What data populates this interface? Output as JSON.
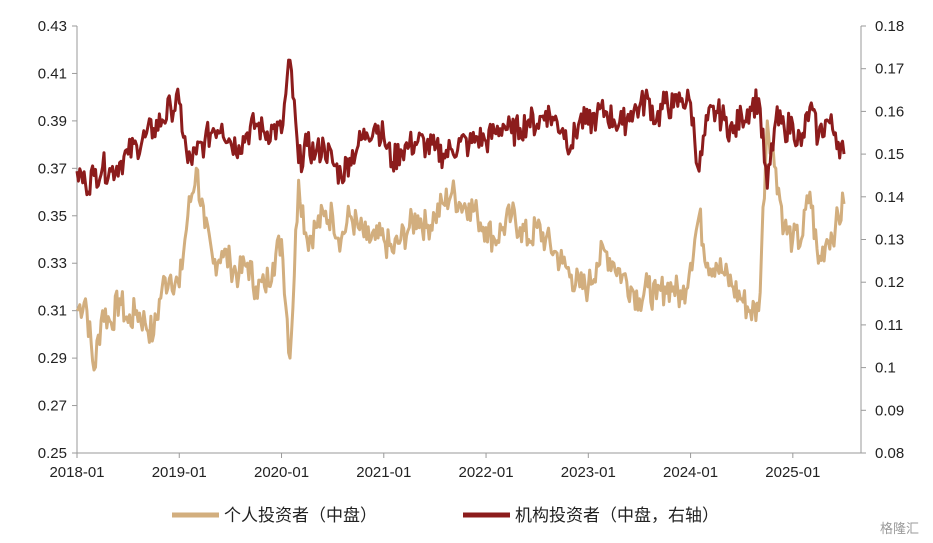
{
  "chart_data": {
    "type": "line",
    "title": "",
    "xlabel": "",
    "ylabel": "",
    "x_ticks": [
      "2018-01",
      "2019-01",
      "2020-01",
      "2021-01",
      "2022-01",
      "2023-01",
      "2024-01",
      "2025-01"
    ],
    "y_left": {
      "min": 0.25,
      "max": 0.43,
      "ticks": [
        "0.25",
        "0.27",
        "0.29",
        "0.31",
        "0.33",
        "0.35",
        "0.37",
        "0.39",
        "0.41",
        "0.43"
      ]
    },
    "y_right": {
      "min": 0.08,
      "max": 0.18,
      "ticks": [
        "0.08",
        "0.09",
        "0.1",
        "0.11",
        "0.12",
        "0.13",
        "0.14",
        "0.15",
        "0.16",
        "0.17",
        "0.18"
      ]
    },
    "grid": false,
    "legend_position": "bottom",
    "series": [
      {
        "name": "个人投资者（中盘）",
        "axis": "left",
        "color": "#D2AE7E",
        "points": [
          [
            "2018-01",
            0.31
          ],
          [
            "2018-02",
            0.315
          ],
          [
            "2018-03",
            0.285
          ],
          [
            "2018-04",
            0.31
          ],
          [
            "2018-05",
            0.305
          ],
          [
            "2018-06",
            0.315
          ],
          [
            "2018-07",
            0.305
          ],
          [
            "2018-08",
            0.31
          ],
          [
            "2018-09",
            0.305
          ],
          [
            "2018-10",
            0.3
          ],
          [
            "2018-11",
            0.32
          ],
          [
            "2018-12",
            0.325
          ],
          [
            "2019-01",
            0.32
          ],
          [
            "2019-02",
            0.35
          ],
          [
            "2019-03",
            0.37
          ],
          [
            "2019-04",
            0.345
          ],
          [
            "2019-05",
            0.33
          ],
          [
            "2019-06",
            0.335
          ],
          [
            "2019-07",
            0.33
          ],
          [
            "2019-08",
            0.325
          ],
          [
            "2019-09",
            0.33
          ],
          [
            "2019-10",
            0.32
          ],
          [
            "2019-11",
            0.32
          ],
          [
            "2019-12",
            0.33
          ],
          [
            "2020-01",
            0.34
          ],
          [
            "2020-02",
            0.29
          ],
          [
            "2020-03",
            0.365
          ],
          [
            "2020-04",
            0.34
          ],
          [
            "2020-05",
            0.345
          ],
          [
            "2020-06",
            0.35
          ],
          [
            "2020-07",
            0.35
          ],
          [
            "2020-08",
            0.34
          ],
          [
            "2020-09",
            0.35
          ],
          [
            "2020-10",
            0.345
          ],
          [
            "2020-11",
            0.34
          ],
          [
            "2020-12",
            0.34
          ],
          [
            "2021-01",
            0.34
          ],
          [
            "2021-02",
            0.335
          ],
          [
            "2021-03",
            0.34
          ],
          [
            "2021-04",
            0.345
          ],
          [
            "2021-05",
            0.35
          ],
          [
            "2021-06",
            0.345
          ],
          [
            "2021-07",
            0.35
          ],
          [
            "2021-08",
            0.355
          ],
          [
            "2021-09",
            0.36
          ],
          [
            "2021-10",
            0.355
          ],
          [
            "2021-11",
            0.355
          ],
          [
            "2021-12",
            0.35
          ],
          [
            "2022-01",
            0.345
          ],
          [
            "2022-02",
            0.34
          ],
          [
            "2022-03",
            0.345
          ],
          [
            "2022-04",
            0.35
          ],
          [
            "2022-05",
            0.345
          ],
          [
            "2022-06",
            0.34
          ],
          [
            "2022-07",
            0.345
          ],
          [
            "2022-08",
            0.34
          ],
          [
            "2022-09",
            0.335
          ],
          [
            "2022-10",
            0.33
          ],
          [
            "2022-11",
            0.325
          ],
          [
            "2022-12",
            0.32
          ],
          [
            "2023-01",
            0.32
          ],
          [
            "2023-02",
            0.33
          ],
          [
            "2023-03",
            0.335
          ],
          [
            "2023-04",
            0.33
          ],
          [
            "2023-05",
            0.325
          ],
          [
            "2023-06",
            0.32
          ],
          [
            "2023-07",
            0.315
          ],
          [
            "2023-08",
            0.32
          ],
          [
            "2023-09",
            0.315
          ],
          [
            "2023-10",
            0.32
          ],
          [
            "2023-11",
            0.32
          ],
          [
            "2023-12",
            0.315
          ],
          [
            "2024-01",
            0.33
          ],
          [
            "2024-02",
            0.35
          ],
          [
            "2024-03",
            0.33
          ],
          [
            "2024-04",
            0.33
          ],
          [
            "2024-05",
            0.325
          ],
          [
            "2024-06",
            0.32
          ],
          [
            "2024-07",
            0.315
          ],
          [
            "2024-08",
            0.31
          ],
          [
            "2024-09",
            0.31
          ],
          [
            "2024-10",
            0.39
          ],
          [
            "2024-11",
            0.37
          ],
          [
            "2024-12",
            0.345
          ],
          [
            "2025-01",
            0.34
          ],
          [
            "2025-02",
            0.34
          ],
          [
            "2025-03",
            0.36
          ],
          [
            "2025-04",
            0.33
          ],
          [
            "2025-05",
            0.34
          ],
          [
            "2025-06",
            0.345
          ],
          [
            "2025-07",
            0.355
          ]
        ]
      },
      {
        "name": "机构投资者（中盘，右轴）",
        "axis": "right",
        "color": "#8C1C1C",
        "points": [
          [
            "2018-01",
            0.146
          ],
          [
            "2018-02",
            0.143
          ],
          [
            "2018-03",
            0.145
          ],
          [
            "2018-04",
            0.147
          ],
          [
            "2018-05",
            0.146
          ],
          [
            "2018-06",
            0.148
          ],
          [
            "2018-07",
            0.15
          ],
          [
            "2018-08",
            0.152
          ],
          [
            "2018-09",
            0.154
          ],
          [
            "2018-10",
            0.156
          ],
          [
            "2018-11",
            0.158
          ],
          [
            "2018-12",
            0.161
          ],
          [
            "2019-01",
            0.162
          ],
          [
            "2019-02",
            0.148
          ],
          [
            "2019-03",
            0.15
          ],
          [
            "2019-04",
            0.153
          ],
          [
            "2019-05",
            0.156
          ],
          [
            "2019-06",
            0.157
          ],
          [
            "2019-07",
            0.153
          ],
          [
            "2019-08",
            0.152
          ],
          [
            "2019-09",
            0.155
          ],
          [
            "2019-10",
            0.157
          ],
          [
            "2019-11",
            0.155
          ],
          [
            "2019-12",
            0.156
          ],
          [
            "2020-01",
            0.155
          ],
          [
            "2020-02",
            0.172
          ],
          [
            "2020-03",
            0.148
          ],
          [
            "2020-04",
            0.152
          ],
          [
            "2020-05",
            0.15
          ],
          [
            "2020-06",
            0.152
          ],
          [
            "2020-07",
            0.148
          ],
          [
            "2020-08",
            0.145
          ],
          [
            "2020-09",
            0.149
          ],
          [
            "2020-10",
            0.152
          ],
          [
            "2020-11",
            0.155
          ],
          [
            "2020-12",
            0.157
          ],
          [
            "2021-01",
            0.154
          ],
          [
            "2021-02",
            0.148
          ],
          [
            "2021-03",
            0.151
          ],
          [
            "2021-04",
            0.152
          ],
          [
            "2021-05",
            0.153
          ],
          [
            "2021-06",
            0.152
          ],
          [
            "2021-07",
            0.151
          ],
          [
            "2021-08",
            0.15
          ],
          [
            "2021-09",
            0.151
          ],
          [
            "2021-10",
            0.153
          ],
          [
            "2021-11",
            0.152
          ],
          [
            "2021-12",
            0.154
          ],
          [
            "2022-01",
            0.153
          ],
          [
            "2022-02",
            0.155
          ],
          [
            "2022-03",
            0.157
          ],
          [
            "2022-04",
            0.155
          ],
          [
            "2022-05",
            0.156
          ],
          [
            "2022-06",
            0.158
          ],
          [
            "2022-07",
            0.157
          ],
          [
            "2022-08",
            0.16
          ],
          [
            "2022-09",
            0.158
          ],
          [
            "2022-10",
            0.156
          ],
          [
            "2022-11",
            0.152
          ],
          [
            "2022-12",
            0.158
          ],
          [
            "2023-01",
            0.157
          ],
          [
            "2023-02",
            0.159
          ],
          [
            "2023-03",
            0.16
          ],
          [
            "2023-04",
            0.158
          ],
          [
            "2023-05",
            0.157
          ],
          [
            "2023-06",
            0.16
          ],
          [
            "2023-07",
            0.161
          ],
          [
            "2023-08",
            0.163
          ],
          [
            "2023-09",
            0.158
          ],
          [
            "2023-10",
            0.162
          ],
          [
            "2023-11",
            0.161
          ],
          [
            "2023-12",
            0.163
          ],
          [
            "2024-01",
            0.162
          ],
          [
            "2024-02",
            0.146
          ],
          [
            "2024-03",
            0.158
          ],
          [
            "2024-04",
            0.16
          ],
          [
            "2024-05",
            0.158
          ],
          [
            "2024-06",
            0.155
          ],
          [
            "2024-07",
            0.159
          ],
          [
            "2024-08",
            0.161
          ],
          [
            "2024-09",
            0.163
          ],
          [
            "2024-10",
            0.142
          ],
          [
            "2024-11",
            0.158
          ],
          [
            "2024-12",
            0.156
          ],
          [
            "2025-01",
            0.157
          ],
          [
            "2025-02",
            0.152
          ],
          [
            "2025-03",
            0.161
          ],
          [
            "2025-04",
            0.154
          ],
          [
            "2025-05",
            0.158
          ],
          [
            "2025-06",
            0.155
          ],
          [
            "2025-07",
            0.15
          ]
        ]
      }
    ]
  },
  "watermark": "格隆汇"
}
